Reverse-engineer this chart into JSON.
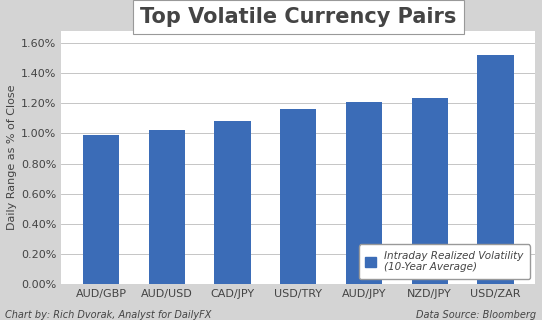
{
  "categories": [
    "AUD/GBP",
    "AUD/USD",
    "CAD/JPY",
    "USD/TRY",
    "AUD/JPY",
    "NZD/JPY",
    "USD/ZAR"
  ],
  "values": [
    0.0099,
    0.01025,
    0.01085,
    0.01165,
    0.0121,
    0.01235,
    0.0152
  ],
  "bar_color": "#3B6CB7",
  "title": "Top Volatile Currency Pairs",
  "ylabel": "Daily Range as % of Close",
  "ylim_max": 0.0168,
  "ytick_vals": [
    0.0,
    0.002,
    0.004,
    0.006,
    0.008,
    0.01,
    0.012,
    0.014,
    0.016
  ],
  "ytick_labels": [
    "0.00%",
    "0.20%",
    "0.40%",
    "0.60%",
    "0.80%",
    "1.00%",
    "1.20%",
    "1.40%",
    "1.60%"
  ],
  "legend_label": "Intraday Realized Volatility\n(10-Year Average)",
  "footer_left": "Chart by: Rich Dvorak, Analyst for DailyFX",
  "footer_right": "Data Source: Bloomberg",
  "fig_bg_color": "#D4D4D4",
  "plot_bg_color": "#FFFFFF",
  "title_box_color": "#FFFFFF",
  "grid_color": "#BBBBBB",
  "title_fontsize": 15,
  "ylabel_fontsize": 8,
  "tick_fontsize": 8,
  "footer_fontsize": 7
}
